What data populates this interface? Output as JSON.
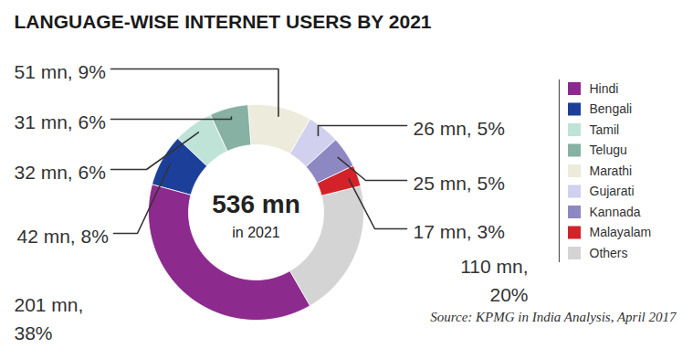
{
  "chart_data": {
    "type": "donut",
    "title": "LANGUAGE-WISE INTERNET USERS BY 2021",
    "annotations": [
      "536 mn",
      "in 2021"
    ],
    "source": "Source: KPMG in India Analysis, April 2017",
    "categories": [
      "Hindi",
      "Bengali",
      "Tamil",
      "Telugu",
      "Marathi",
      "Gujarati",
      "Kannada",
      "Malayalam",
      "Others"
    ],
    "values": [
      201,
      42,
      32,
      31,
      51,
      26,
      25,
      17,
      110
    ],
    "value_labels": [
      "201 mn, 38%",
      "42 mn, 8%",
      "32 mn, 6%",
      "31 mn, 6%",
      "51 mn, 9%",
      "26 mn, 5%",
      "25 mn, 5%",
      "17 mn, 3%",
      "110 mn, 20%"
    ],
    "colors": [
      "#8c2a8d",
      "#1c3f99",
      "#bfe3d6",
      "#87b1a2",
      "#ecebdc",
      "#d1d0ee",
      "#8e88c2",
      "#d3222a",
      "#d4d4d4"
    ],
    "data_labels": true,
    "legend": "right"
  }
}
